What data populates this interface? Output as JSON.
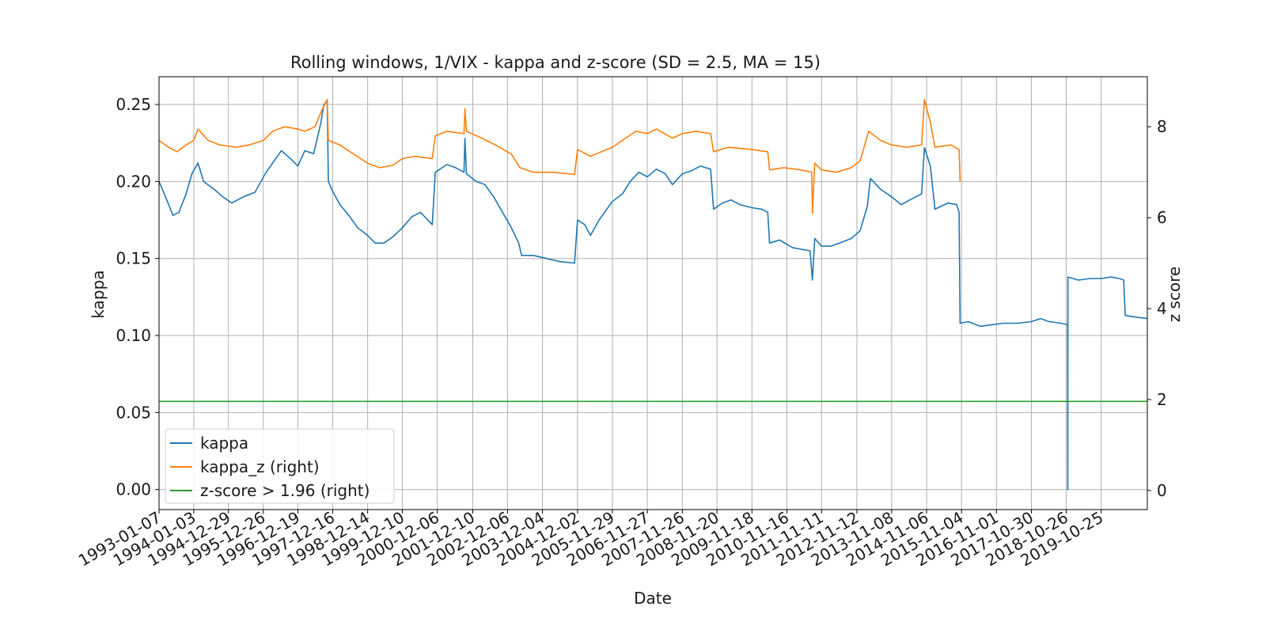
{
  "chart_data": {
    "type": "line",
    "title": "Rolling windows, 1/VIX - kappa and z-score (SD = 2.5, MA = 15)",
    "xlabel": "Date",
    "ylabel": "kappa",
    "ylabel_right": "z score",
    "grid": true,
    "legend_position": "lower-left",
    "x_range": [
      "1993-01-07",
      "2021-02-15"
    ],
    "ylim": [
      -0.013,
      0.268
    ],
    "ylim_right": [
      -0.42,
      9.1
    ],
    "x_tick_labels": [
      "1993-01-07",
      "1994-01-03",
      "1994-12-29",
      "1995-12-26",
      "1996-12-19",
      "1997-12-16",
      "1998-12-14",
      "1999-12-10",
      "2000-12-06",
      "2001-12-10",
      "2002-12-06",
      "2003-12-04",
      "2004-12-02",
      "2005-11-29",
      "2006-11-27",
      "2007-11-26",
      "2008-11-20",
      "2009-11-18",
      "2010-11-16",
      "2011-11-11",
      "2012-11-12",
      "2013-11-08",
      "2014-11-06",
      "2015-11-04",
      "2016-11-01",
      "2017-10-30",
      "2018-10-26",
      "2019-10-25"
    ],
    "y_tick_labels": [
      "0.00",
      "0.05",
      "0.10",
      "0.15",
      "0.20",
      "0.25"
    ],
    "y_tick_values": [
      0.0,
      0.05,
      0.1,
      0.15,
      0.2,
      0.25
    ],
    "y_right_tick_labels": [
      "0",
      "2",
      "4",
      "6",
      "8"
    ],
    "y_right_tick_values": [
      0,
      2,
      4,
      6,
      8
    ],
    "series": [
      {
        "name": "kappa",
        "axis": "left",
        "color": "#1f77b4",
        "points": [
          [
            "1993-01-07",
            0.2
          ],
          [
            "1993-03-15",
            0.19
          ],
          [
            "1993-06-01",
            0.178
          ],
          [
            "1993-08-01",
            0.18
          ],
          [
            "1993-10-15",
            0.192
          ],
          [
            "1993-12-15",
            0.205
          ],
          [
            "1994-02-15",
            0.212
          ],
          [
            "1994-04-15",
            0.2
          ],
          [
            "1994-08-01",
            0.195
          ],
          [
            "1994-11-01",
            0.19
          ],
          [
            "1995-02-01",
            0.186
          ],
          [
            "1995-06-01",
            0.19
          ],
          [
            "1995-10-01",
            0.193
          ],
          [
            "1996-01-15",
            0.205
          ],
          [
            "1996-04-01",
            0.212
          ],
          [
            "1996-07-01",
            0.22
          ],
          [
            "1996-10-01",
            0.215
          ],
          [
            "1996-12-19",
            0.21
          ],
          [
            "1997-03-01",
            0.22
          ],
          [
            "1997-06-01",
            0.218
          ],
          [
            "1997-08-15",
            0.238
          ],
          [
            "1997-09-15",
            0.25
          ],
          [
            "1997-10-20",
            0.252
          ],
          [
            "1997-11-01",
            0.2
          ],
          [
            "1997-12-20",
            0.193
          ],
          [
            "1998-03-01",
            0.185
          ],
          [
            "1998-06-01",
            0.178
          ],
          [
            "1998-09-01",
            0.17
          ],
          [
            "1998-12-14",
            0.165
          ],
          [
            "1999-03-01",
            0.16
          ],
          [
            "1999-06-01",
            0.16
          ],
          [
            "1999-09-01",
            0.164
          ],
          [
            "1999-12-10",
            0.17
          ],
          [
            "2000-03-15",
            0.177
          ],
          [
            "2000-06-15",
            0.18
          ],
          [
            "2000-10-15",
            0.172
          ],
          [
            "2000-11-15",
            0.206
          ],
          [
            "2001-03-15",
            0.211
          ],
          [
            "2001-06-15",
            0.209
          ],
          [
            "2001-09-10",
            0.206
          ],
          [
            "2001-09-20",
            0.228
          ],
          [
            "2001-10-05",
            0.205
          ],
          [
            "2002-01-15",
            0.2
          ],
          [
            "2002-04-15",
            0.198
          ],
          [
            "2002-07-15",
            0.19
          ],
          [
            "2002-10-15",
            0.18
          ],
          [
            "2003-01-15",
            0.17
          ],
          [
            "2003-04-01",
            0.16
          ],
          [
            "2003-05-01",
            0.152
          ],
          [
            "2003-09-01",
            0.152
          ],
          [
            "2004-01-15",
            0.15
          ],
          [
            "2004-06-01",
            0.148
          ],
          [
            "2004-11-01",
            0.147
          ],
          [
            "2004-12-02",
            0.175
          ],
          [
            "2005-02-15",
            0.172
          ],
          [
            "2005-04-15",
            0.165
          ],
          [
            "2005-07-15",
            0.175
          ],
          [
            "2005-11-29",
            0.187
          ],
          [
            "2006-03-15",
            0.192
          ],
          [
            "2006-06-01",
            0.2
          ],
          [
            "2006-09-01",
            0.206
          ],
          [
            "2006-11-27",
            0.203
          ],
          [
            "2007-03-01",
            0.208
          ],
          [
            "2007-06-01",
            0.205
          ],
          [
            "2007-08-15",
            0.198
          ],
          [
            "2007-11-26",
            0.205
          ],
          [
            "2008-03-01",
            0.207
          ],
          [
            "2008-06-01",
            0.21
          ],
          [
            "2008-09-15",
            0.208
          ],
          [
            "2008-10-15",
            0.182
          ],
          [
            "2009-01-15",
            0.186
          ],
          [
            "2009-04-15",
            0.188
          ],
          [
            "2009-07-15",
            0.185
          ],
          [
            "2009-11-18",
            0.183
          ],
          [
            "2010-03-01",
            0.182
          ],
          [
            "2010-05-01",
            0.18
          ],
          [
            "2010-05-20",
            0.16
          ],
          [
            "2010-09-01",
            0.162
          ],
          [
            "2011-01-15",
            0.157
          ],
          [
            "2011-04-15",
            0.156
          ],
          [
            "2011-07-15",
            0.155
          ],
          [
            "2011-08-08",
            0.136
          ],
          [
            "2011-09-01",
            0.163
          ],
          [
            "2011-11-11",
            0.158
          ],
          [
            "2012-02-15",
            0.158
          ],
          [
            "2012-05-15",
            0.16
          ],
          [
            "2012-09-15",
            0.163
          ],
          [
            "2012-12-15",
            0.168
          ],
          [
            "2013-03-01",
            0.184
          ],
          [
            "2013-04-01",
            0.202
          ],
          [
            "2013-07-15",
            0.195
          ],
          [
            "2013-11-08",
            0.19
          ],
          [
            "2014-02-15",
            0.185
          ],
          [
            "2014-06-15",
            0.189
          ],
          [
            "2014-09-15",
            0.192
          ],
          [
            "2014-10-15",
            0.222
          ],
          [
            "2014-12-15",
            0.21
          ],
          [
            "2015-02-01",
            0.182
          ],
          [
            "2015-06-15",
            0.186
          ],
          [
            "2015-09-15",
            0.185
          ],
          [
            "2015-10-10",
            0.18
          ],
          [
            "2015-10-20",
            0.108
          ],
          [
            "2016-01-15",
            0.109
          ],
          [
            "2016-05-15",
            0.106
          ],
          [
            "2016-09-15",
            0.107
          ],
          [
            "2017-01-15",
            0.108
          ],
          [
            "2017-06-15",
            0.108
          ],
          [
            "2017-10-30",
            0.109
          ],
          [
            "2018-02-01",
            0.111
          ],
          [
            "2018-05-01",
            0.109
          ],
          [
            "2018-09-01",
            0.108
          ],
          [
            "2018-11-10",
            0.107
          ],
          [
            "2018-11-12",
            0.0
          ],
          [
            "2018-11-14",
            0.138
          ],
          [
            "2019-03-01",
            0.136
          ],
          [
            "2019-07-01",
            0.137
          ],
          [
            "2019-10-25",
            0.137
          ],
          [
            "2020-02-01",
            0.138
          ],
          [
            "2020-05-01",
            0.137
          ],
          [
            "2020-06-15",
            0.136
          ],
          [
            "2020-07-01",
            0.113
          ],
          [
            "2020-10-15",
            0.112
          ],
          [
            "2021-02-15",
            0.111
          ]
        ]
      },
      {
        "name": "kappa_z (right)",
        "axis": "right",
        "color": "#ff7f0e",
        "points": [
          [
            "1993-01-07",
            7.7
          ],
          [
            "1993-04-15",
            7.55
          ],
          [
            "1993-07-15",
            7.45
          ],
          [
            "1993-10-15",
            7.6
          ],
          [
            "1994-01-03",
            7.7
          ],
          [
            "1994-02-15",
            7.95
          ],
          [
            "1994-06-01",
            7.7
          ],
          [
            "1994-10-01",
            7.6
          ],
          [
            "1995-03-15",
            7.55
          ],
          [
            "1995-08-01",
            7.6
          ],
          [
            "1995-12-26",
            7.7
          ],
          [
            "1996-04-01",
            7.9
          ],
          [
            "1996-08-01",
            8.0
          ],
          [
            "1996-12-19",
            7.95
          ],
          [
            "1997-03-01",
            7.9
          ],
          [
            "1997-06-15",
            8.0
          ],
          [
            "1997-09-01",
            8.4
          ],
          [
            "1997-10-20",
            8.6
          ],
          [
            "1997-11-01",
            7.7
          ],
          [
            "1998-03-01",
            7.6
          ],
          [
            "1998-06-15",
            7.45
          ],
          [
            "1998-12-14",
            7.2
          ],
          [
            "1999-04-15",
            7.1
          ],
          [
            "1999-09-01",
            7.15
          ],
          [
            "1999-12-10",
            7.3
          ],
          [
            "2000-04-15",
            7.35
          ],
          [
            "2000-10-15",
            7.3
          ],
          [
            "2000-11-15",
            7.8
          ],
          [
            "2001-03-15",
            7.9
          ],
          [
            "2001-09-10",
            7.85
          ],
          [
            "2001-09-20",
            8.4
          ],
          [
            "2001-10-05",
            7.9
          ],
          [
            "2002-03-15",
            7.75
          ],
          [
            "2002-08-01",
            7.6
          ],
          [
            "2003-01-15",
            7.4
          ],
          [
            "2003-04-15",
            7.1
          ],
          [
            "2003-09-01",
            7.0
          ],
          [
            "2004-03-15",
            7.0
          ],
          [
            "2004-11-01",
            6.95
          ],
          [
            "2004-12-02",
            7.5
          ],
          [
            "2005-04-15",
            7.35
          ],
          [
            "2005-11-29",
            7.55
          ],
          [
            "2006-04-15",
            7.75
          ],
          [
            "2006-08-01",
            7.9
          ],
          [
            "2006-11-27",
            7.85
          ],
          [
            "2007-03-01",
            7.95
          ],
          [
            "2007-08-15",
            7.75
          ],
          [
            "2007-11-26",
            7.85
          ],
          [
            "2008-04-15",
            7.9
          ],
          [
            "2008-09-15",
            7.85
          ],
          [
            "2008-10-15",
            7.45
          ],
          [
            "2009-03-15",
            7.55
          ],
          [
            "2009-11-18",
            7.5
          ],
          [
            "2010-05-01",
            7.45
          ],
          [
            "2010-05-20",
            7.05
          ],
          [
            "2010-10-15",
            7.1
          ],
          [
            "2011-04-15",
            7.05
          ],
          [
            "2011-08-01",
            7.0
          ],
          [
            "2011-08-08",
            6.1
          ],
          [
            "2011-09-01",
            7.2
          ],
          [
            "2011-11-11",
            7.05
          ],
          [
            "2012-04-15",
            7.0
          ],
          [
            "2012-09-15",
            7.1
          ],
          [
            "2012-12-15",
            7.25
          ],
          [
            "2013-03-15",
            7.9
          ],
          [
            "2013-07-15",
            7.7
          ],
          [
            "2013-11-08",
            7.6
          ],
          [
            "2014-04-15",
            7.55
          ],
          [
            "2014-09-15",
            7.6
          ],
          [
            "2014-10-15",
            8.6
          ],
          [
            "2014-12-15",
            8.1
          ],
          [
            "2015-02-01",
            7.55
          ],
          [
            "2015-07-15",
            7.6
          ],
          [
            "2015-10-10",
            7.5
          ],
          [
            "2015-10-20",
            6.8
          ]
        ]
      },
      {
        "name": "z-score > 1.96 (right)",
        "axis": "right",
        "color": "#2ca02c",
        "points": [
          [
            "1993-01-07",
            1.96
          ],
          [
            "2021-02-15",
            1.96
          ]
        ]
      }
    ]
  }
}
